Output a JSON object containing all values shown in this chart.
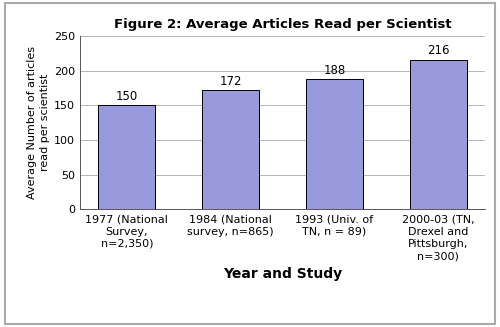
{
  "title": "Figure 2: Average Articles Read per Scientist",
  "xlabel": "Year and Study",
  "ylabel": "Average Number of articles\nread per scientist",
  "categories": [
    "1977 (National\nSurvey,\nn=2,350)",
    "1984 (National\nsurvey, n=865)",
    "1993 (Univ. of\nTN, n = 89)",
    "2000-03 (TN,\nDrexel and\nPittsburgh,\nn=300)"
  ],
  "values": [
    150,
    172,
    188,
    216
  ],
  "bar_color": "#9999DD",
  "bar_edgecolor": "#000000",
  "ylim": [
    0,
    250
  ],
  "yticks": [
    0,
    50,
    100,
    150,
    200,
    250
  ],
  "grid_color": "#aaaaaa",
  "background_color": "#ffffff",
  "outer_border_color": "#aaaaaa",
  "title_fontsize": 9.5,
  "tick_fontsize": 8,
  "value_fontsize": 8.5,
  "xlabel_fontsize": 10,
  "ylabel_fontsize": 8,
  "bar_width": 0.55
}
